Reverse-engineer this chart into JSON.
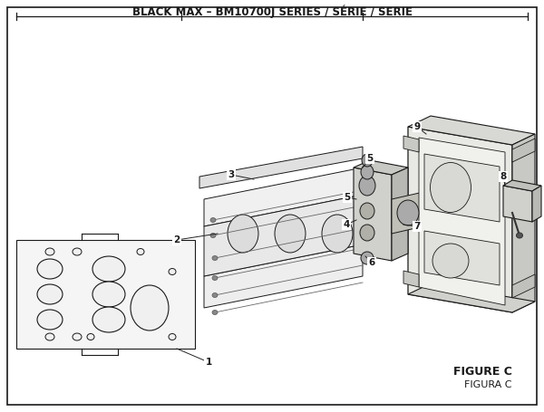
{
  "title": "BLACK MAX – BM10700J SERIES / SÉRIE / SERIE",
  "title_fontsize": 8.5,
  "bg": "#ffffff",
  "lc": "#1a1a1a",
  "figure_label": "FIGURE C",
  "figure_label2": "FIGURA C"
}
